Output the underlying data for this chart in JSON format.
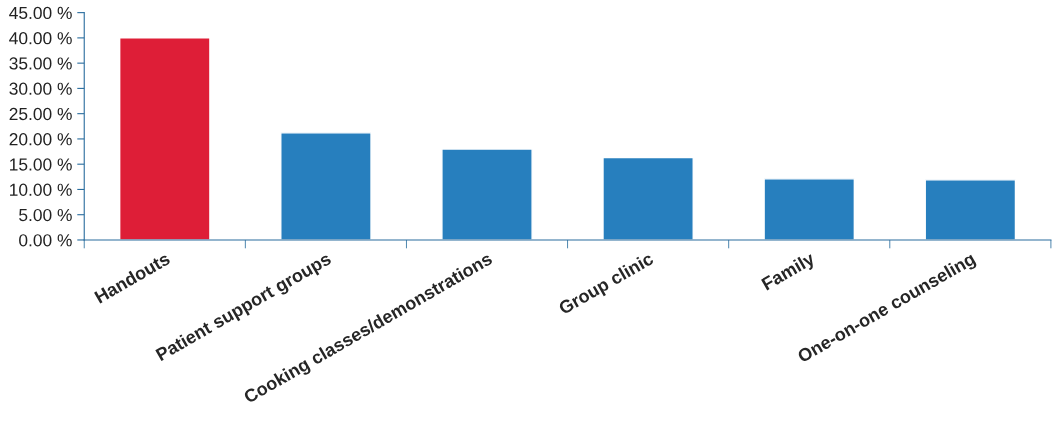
{
  "chart_data": {
    "type": "bar",
    "categories": [
      "Handouts",
      "Patient support groups",
      "Cooking classes/demonstrations",
      "Group clinic",
      "Family",
      "One-on-one counseling"
    ],
    "values": [
      40.0,
      21.2,
      18.0,
      16.3,
      12.1,
      11.9
    ],
    "colors": [
      "#de1e37",
      "#277fbe",
      "#277fbe",
      "#277fbe",
      "#277fbe",
      "#277fbe"
    ],
    "ylim": [
      0,
      45
    ],
    "yticks": [
      {
        "value": 0,
        "label": "0.00 %"
      },
      {
        "value": 5,
        "label": "5.00 %"
      },
      {
        "value": 10,
        "label": "10.00 %"
      },
      {
        "value": 15,
        "label": "15.00 %"
      },
      {
        "value": 20,
        "label": "20.00 %"
      },
      {
        "value": 25,
        "label": "25.00 %"
      },
      {
        "value": 30,
        "label": "30.00 %"
      },
      {
        "value": 35,
        "label": "35.00 %"
      },
      {
        "value": 40,
        "label": "40.00 %"
      },
      {
        "value": 45,
        "label": "45.00 %"
      }
    ],
    "grid": false,
    "legend": false
  }
}
